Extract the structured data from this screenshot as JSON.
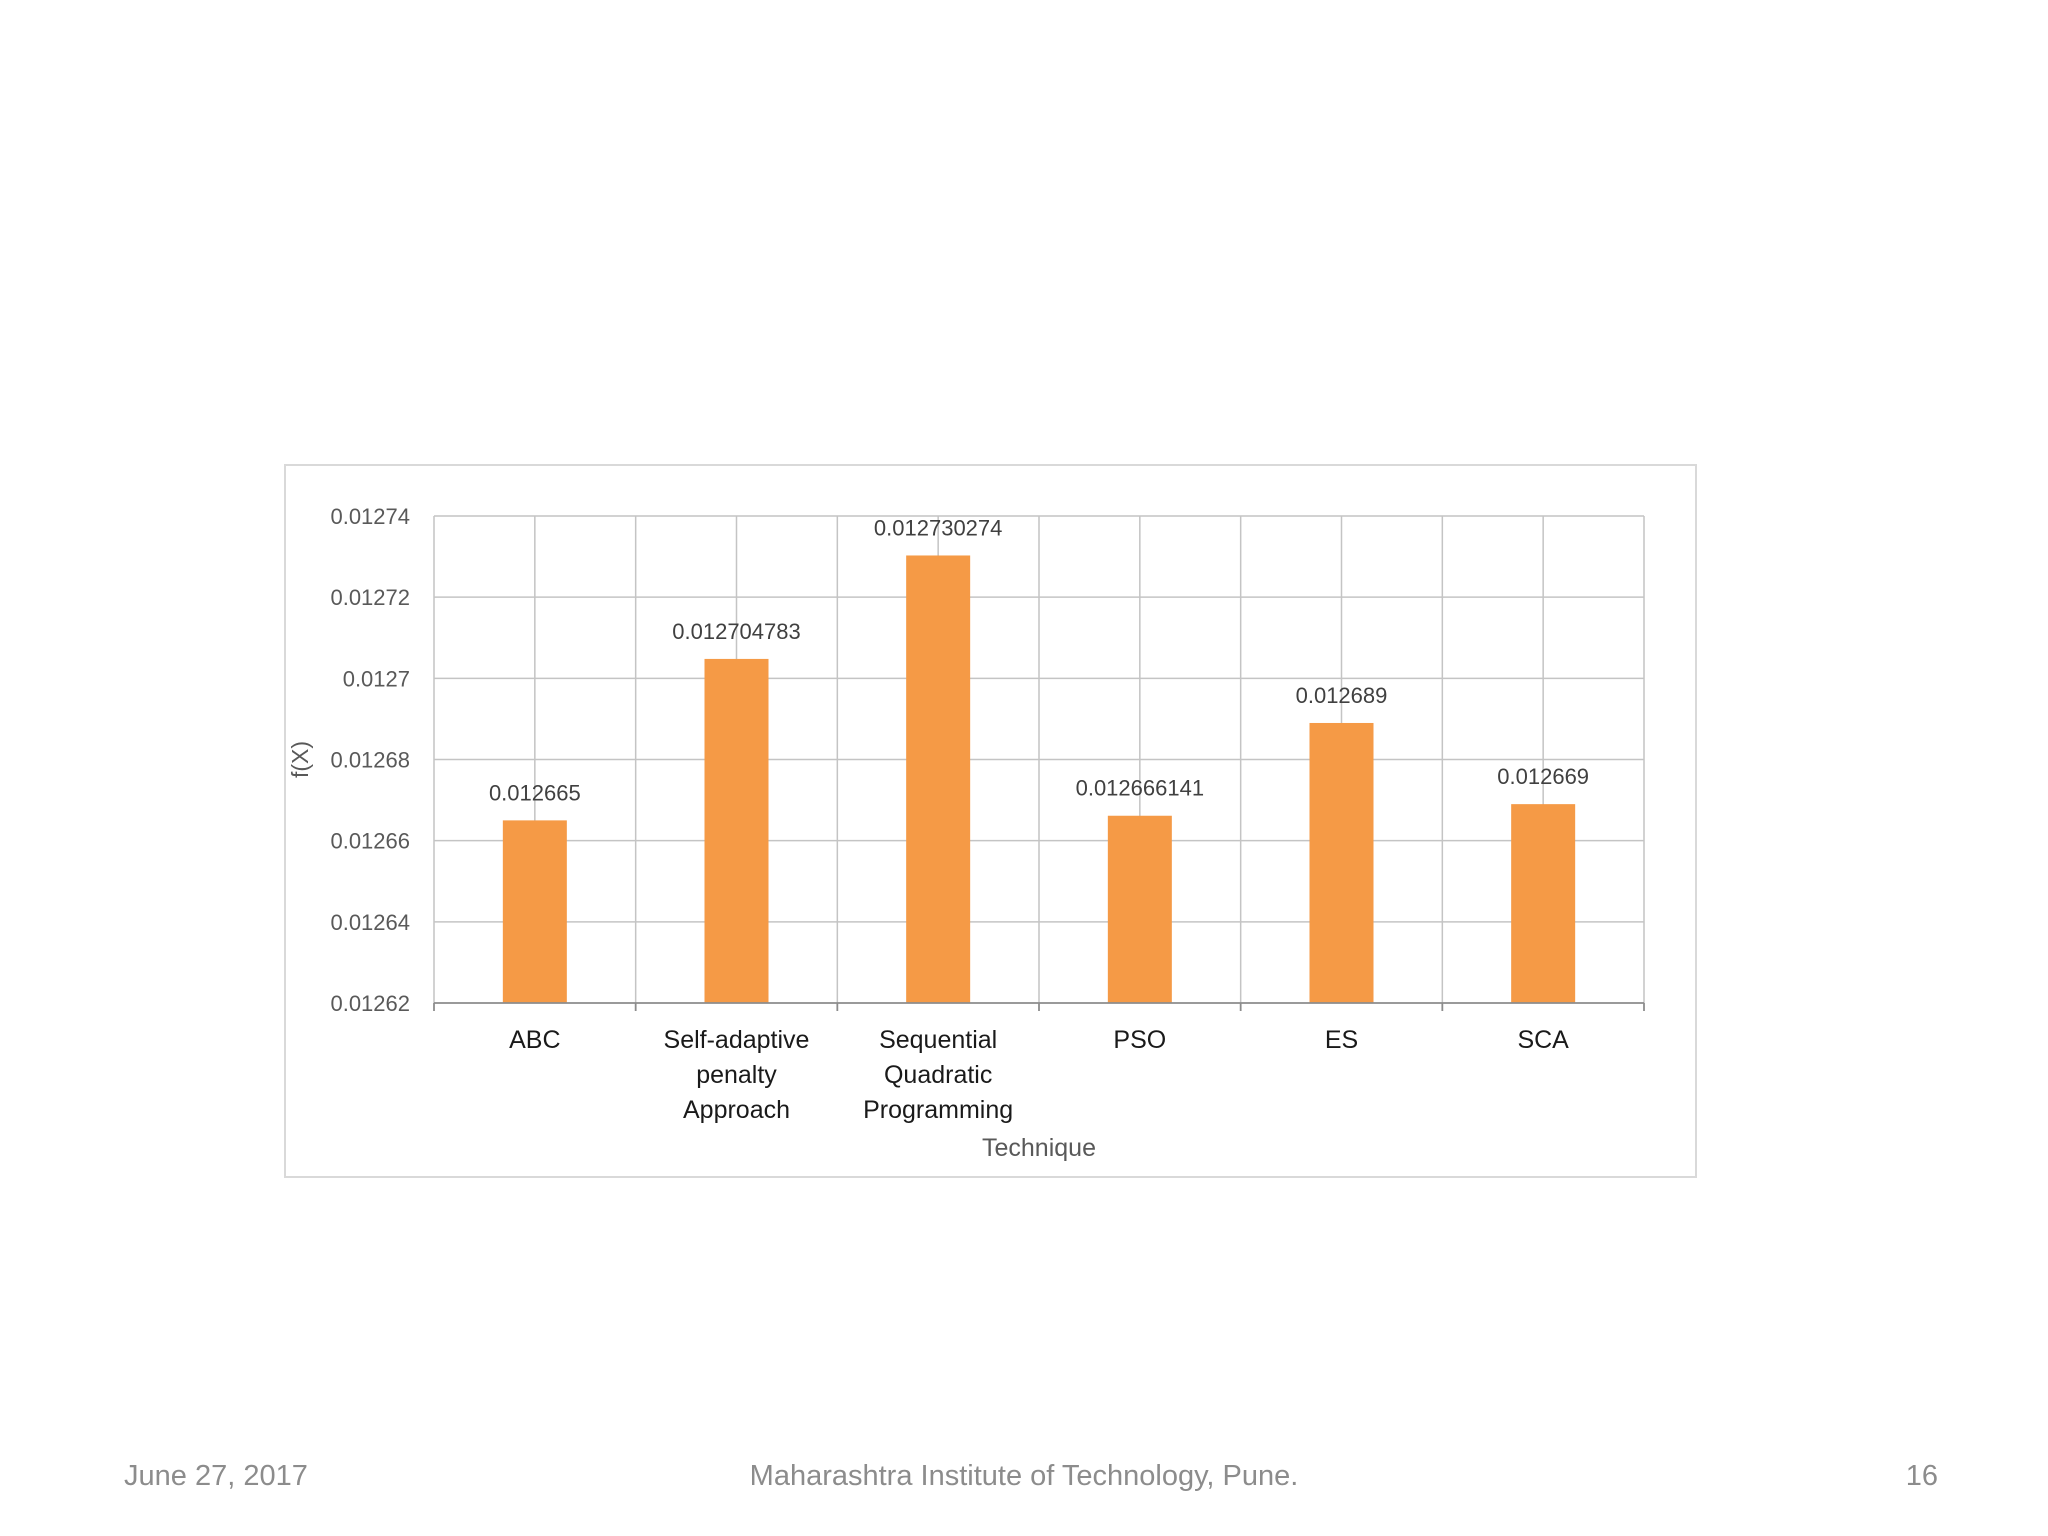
{
  "chart_data": {
    "type": "bar",
    "categories": [
      [
        "ABC"
      ],
      [
        "Self-adaptive",
        "penalty",
        "Approach"
      ],
      [
        "Sequential",
        "Quadratic",
        "Programming"
      ],
      [
        "PSO"
      ],
      [
        "ES"
      ],
      [
        "SCA"
      ]
    ],
    "values": [
      0.012665,
      0.012704783,
      0.012730274,
      0.012666141,
      0.012689,
      0.012669
    ],
    "data_labels": [
      "0.012665",
      "0.012704783",
      "0.012730274",
      "0.012666141",
      "0.012689",
      "0.012669"
    ],
    "ylim": [
      0.01262,
      0.01274
    ],
    "yticks": [
      0.01262,
      0.01264,
      0.01266,
      0.01268,
      0.0127,
      0.01272,
      0.01274
    ],
    "ytick_labels": [
      "0.01262",
      "0.01264",
      "0.01266",
      "0.01268",
      "0.0127",
      "0.01272",
      "0.01274"
    ],
    "xlabel": "Technique",
    "ylabel": "f(X)",
    "grid": true,
    "legend": false,
    "bar_color": "#f59a46",
    "grid_color": "#c4c4c4",
    "axis_color": "#8c8c8c"
  },
  "footer": {
    "date": "June 27, 2017",
    "organization": "Maharashtra Institute of Technology, Pune.",
    "page_number": "16"
  }
}
